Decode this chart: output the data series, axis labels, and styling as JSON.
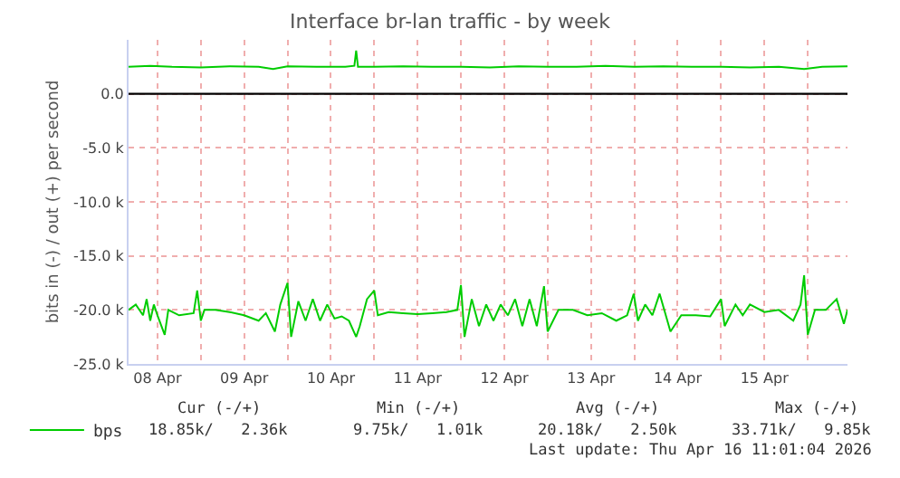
{
  "chart_data": {
    "type": "line",
    "title": "Interface br-lan traffic - by week",
    "ylabel": "bits in (-) / out (+) per second",
    "xlim": [
      "2026-04-08T04:00",
      "2026-04-16T11:00"
    ],
    "xticks": [
      {
        "value": "2026-04-08T12:00",
        "label": "08 Apr"
      },
      {
        "value": "2026-04-09T00:00",
        "label": null
      },
      {
        "value": "2026-04-09T12:00",
        "label": "09 Apr"
      },
      {
        "value": "2026-04-10T00:00",
        "label": null
      },
      {
        "value": "2026-04-10T12:00",
        "label": "10 Apr"
      },
      {
        "value": "2026-04-11T00:00",
        "label": null
      },
      {
        "value": "2026-04-11T12:00",
        "label": "11 Apr"
      },
      {
        "value": "2026-04-12T00:00",
        "label": null
      },
      {
        "value": "2026-04-12T12:00",
        "label": "12 Apr"
      },
      {
        "value": "2026-04-13T00:00",
        "label": null
      },
      {
        "value": "2026-04-13T12:00",
        "label": "13 Apr"
      },
      {
        "value": "2026-04-14T00:00",
        "label": null
      },
      {
        "value": "2026-04-14T12:00",
        "label": "14 Apr"
      },
      {
        "value": "2026-04-15T00:00",
        "label": null
      },
      {
        "value": "2026-04-15T12:00",
        "label": "15 Apr"
      },
      {
        "value": "2026-04-16T00:00",
        "label": null
      }
    ],
    "ylim": [
      -25000,
      5000
    ],
    "yticks": [
      {
        "value": -25000,
        "label": "-25.0 k"
      },
      {
        "value": -20000,
        "label": "-20.0 k"
      },
      {
        "value": -15000,
        "label": "-15.0 k"
      },
      {
        "value": -10000,
        "label": "-10.0 k"
      },
      {
        "value": -5000,
        "label": "-5.0 k"
      },
      {
        "value": 0,
        "label": "0.0"
      }
    ],
    "grid": true,
    "legend": "bottom left",
    "marker": "none",
    "line_style": "solid",
    "ref_lines": [
      {
        "axis": "y",
        "value": 0,
        "color": "#000000"
      }
    ],
    "series": [
      {
        "name": "bps",
        "color": "#00cc00",
        "x": [
          "2026-04-08T04:00",
          "2026-04-08T06:00",
          "2026-04-08T08:00",
          "2026-04-08T09:00",
          "2026-04-08T10:00",
          "2026-04-08T11:00",
          "2026-04-08T12:00",
          "2026-04-08T14:00",
          "2026-04-08T15:00",
          "2026-04-08T18:00",
          "2026-04-08T22:00",
          "2026-04-08T23:00",
          "2026-04-09T00:00",
          "2026-04-09T01:00",
          "2026-04-09T04:00",
          "2026-04-09T08:00",
          "2026-04-09T12:00",
          "2026-04-09T16:00",
          "2026-04-09T18:00",
          "2026-04-09T20:30",
          "2026-04-09T22:00",
          "2026-04-10T00:00",
          "2026-04-10T01:00",
          "2026-04-10T03:00",
          "2026-04-10T05:00",
          "2026-04-10T07:00",
          "2026-04-10T09:00",
          "2026-04-10T11:00",
          "2026-04-10T13:00",
          "2026-04-10T15:00",
          "2026-04-10T17:00",
          "2026-04-10T19:00",
          "2026-04-10T20:00",
          "2026-04-10T22:00",
          "2026-04-11T00:00",
          "2026-04-11T01:00",
          "2026-04-11T04:00",
          "2026-04-11T08:00",
          "2026-04-11T12:00",
          "2026-04-11T16:00",
          "2026-04-11T20:00",
          "2026-04-11T23:00",
          "2026-04-12T00:00",
          "2026-04-12T01:00",
          "2026-04-12T03:00",
          "2026-04-12T05:00",
          "2026-04-12T07:00",
          "2026-04-12T09:00",
          "2026-04-12T11:00",
          "2026-04-12T13:00",
          "2026-04-12T15:00",
          "2026-04-12T17:00",
          "2026-04-12T19:00",
          "2026-04-12T21:00",
          "2026-04-12T23:00",
          "2026-04-13T00:00",
          "2026-04-13T03:00",
          "2026-04-13T07:00",
          "2026-04-13T11:00",
          "2026-04-13T15:00",
          "2026-04-13T19:00",
          "2026-04-13T22:00",
          "2026-04-13T23:50",
          "2026-04-14T01:00",
          "2026-04-14T03:00",
          "2026-04-14T05:00",
          "2026-04-14T07:00",
          "2026-04-14T10:00",
          "2026-04-14T13:00",
          "2026-04-14T17:00",
          "2026-04-14T21:00",
          "2026-04-15T00:00",
          "2026-04-15T01:00",
          "2026-04-15T04:00",
          "2026-04-15T06:00",
          "2026-04-15T08:00",
          "2026-04-15T12:00",
          "2026-04-15T16:00",
          "2026-04-15T20:00",
          "2026-04-15T22:00",
          "2026-04-15T23:00",
          "2026-04-16T00:00",
          "2026-04-16T02:00",
          "2026-04-16T05:00",
          "2026-04-16T08:00",
          "2026-04-16T10:00",
          "2026-04-16T11:00"
        ],
        "values": [
          -20000,
          -19500,
          -20500,
          -19000,
          -21000,
          -19500,
          -20500,
          -22300,
          -20000,
          -20500,
          -20300,
          -18200,
          -21000,
          -20000,
          -20000,
          -20200,
          -20500,
          -21000,
          -20300,
          -22000,
          -19500,
          -17500,
          -22500,
          -19200,
          -21000,
          -19000,
          -21000,
          -19500,
          -20800,
          -20600,
          -21000,
          -22500,
          -21500,
          -19000,
          -18200,
          -20500,
          -20200,
          -20300,
          -20400,
          -20300,
          -20200,
          -20000,
          -17700,
          -22500,
          -19000,
          -21500,
          -19500,
          -21000,
          -19500,
          -20500,
          -19000,
          -21500,
          -19000,
          -21500,
          -17800,
          -22000,
          -20000,
          -20000,
          -20500,
          -20300,
          -21000,
          -20500,
          -18500,
          -21000,
          -19500,
          -20500,
          -18500,
          -22000,
          -20500,
          -20500,
          -20600,
          -19000,
          -21500,
          -19500,
          -20500,
          -19500,
          -20200,
          -20000,
          -21000,
          -19500,
          -16800,
          -22300,
          -20000,
          -20000,
          -19000,
          -21300,
          -20000
        ]
      },
      {
        "color": "#00cc00",
        "x": [
          "2026-04-08T04:00",
          "2026-04-08T10:00",
          "2026-04-08T16:00",
          "2026-04-09T00:00",
          "2026-04-09T08:00",
          "2026-04-09T16:00",
          "2026-04-09T20:00",
          "2026-04-10T00:00",
          "2026-04-10T08:00",
          "2026-04-10T16:00",
          "2026-04-10T18:30",
          "2026-04-10T19:00",
          "2026-04-10T19:30",
          "2026-04-11T00:00",
          "2026-04-11T08:00",
          "2026-04-11T16:00",
          "2026-04-12T00:00",
          "2026-04-12T08:00",
          "2026-04-12T16:00",
          "2026-04-13T00:00",
          "2026-04-13T08:00",
          "2026-04-13T16:00",
          "2026-04-14T00:00",
          "2026-04-14T08:00",
          "2026-04-14T16:00",
          "2026-04-15T00:00",
          "2026-04-15T08:00",
          "2026-04-15T16:00",
          "2026-04-15T23:00",
          "2026-04-16T04:00",
          "2026-04-16T11:00"
        ],
        "values": [
          2500,
          2600,
          2500,
          2450,
          2550,
          2500,
          2300,
          2550,
          2500,
          2500,
          2600,
          4000,
          2500,
          2500,
          2550,
          2500,
          2500,
          2450,
          2550,
          2500,
          2500,
          2600,
          2500,
          2550,
          2500,
          2500,
          2450,
          2500,
          2300,
          2500,
          2550
        ]
      }
    ],
    "annotations": [
      "Cur (-/+)",
      "Min (-/+)",
      "Avg (-/+)",
      "Max (-/+)",
      "18.85k/   2.36k",
      "9.75k/   1.01k",
      "20.18k/   2.50k",
      "33.71k/   9.85k",
      "Last update: Thu Apr 16 11:01:04 2026"
    ]
  }
}
